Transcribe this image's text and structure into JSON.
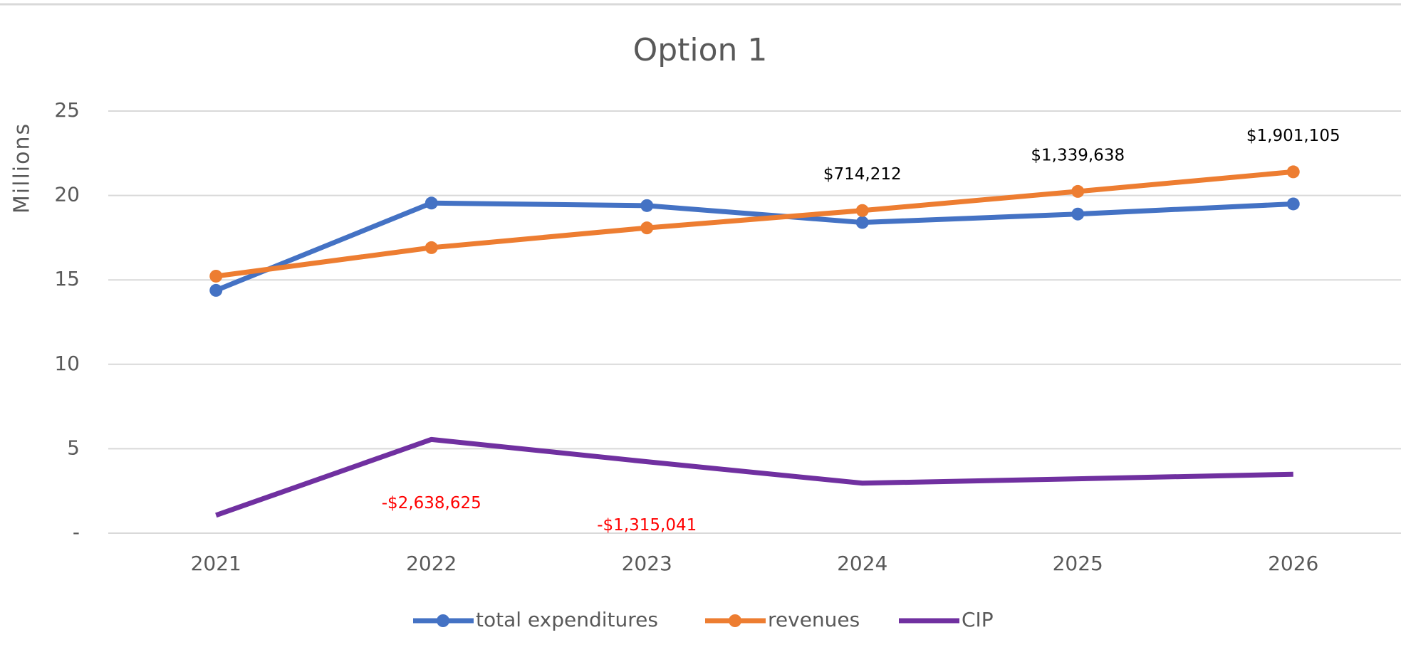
{
  "chart_data": {
    "type": "line",
    "title": "Option 1",
    "ylabel": "Millions",
    "categories": [
      "2021",
      "2022",
      "2023",
      "2024",
      "2025",
      "2026"
    ],
    "series": [
      {
        "name": "total expenditures",
        "color": "#4472c4",
        "markers": true,
        "values": [
          14.38,
          19.55,
          19.4,
          18.4,
          18.9,
          19.5
        ]
      },
      {
        "name": "revenues",
        "color": "#ed7d31",
        "markers": true,
        "values": [
          15.22,
          16.91,
          18.08,
          19.11,
          20.24,
          21.4
        ]
      },
      {
        "name": "CIP",
        "color": "#7030a0",
        "markers": false,
        "values": [
          1.06,
          5.55,
          4.23,
          2.96,
          3.22,
          3.49
        ]
      }
    ],
    "differences": {
      "values": [
        null,
        -2.638625,
        -1.315041,
        0.714212,
        1.339638,
        1.901105
      ],
      "value_labels": [
        null,
        "-$2,638,625",
        "-$1,315,041",
        "$714,212",
        "$1,339,638",
        "$1,901,105"
      ],
      "negative_color": "#ff0000",
      "positive_color": "#000000"
    },
    "ylim": [
      0,
      25
    ],
    "yticks": [
      {
        "value": 0,
        "label": "-"
      },
      5,
      10,
      15,
      20,
      25
    ],
    "grid": true,
    "legend": "bottom"
  }
}
